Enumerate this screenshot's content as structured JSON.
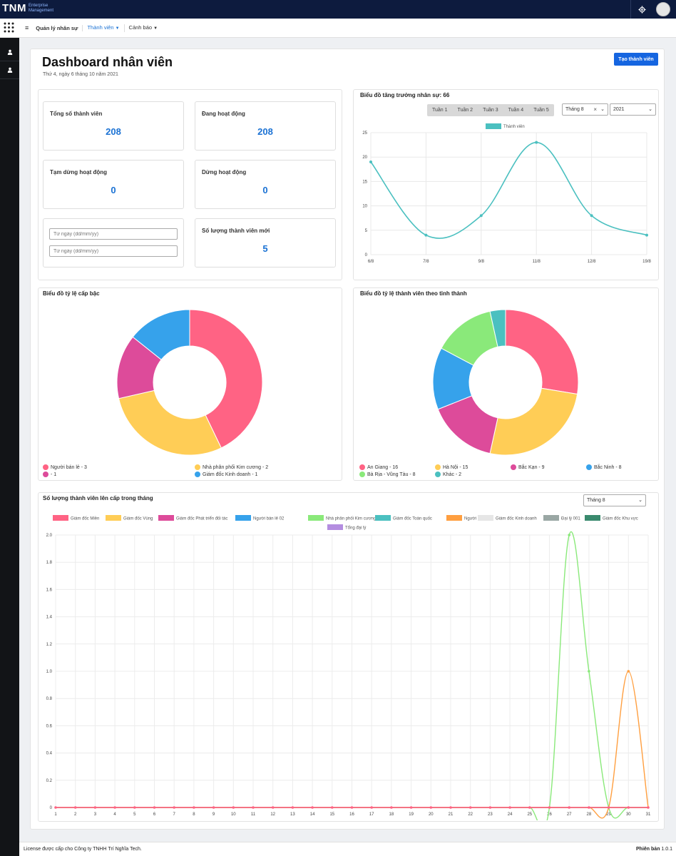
{
  "brand": {
    "name": "TNM",
    "sub_line1": "Enterprise",
    "sub_line2": "Management"
  },
  "icons": {
    "apps": "grid-icon",
    "menu": "hamburger-icon",
    "settings": "gear-icon",
    "user": "user-icon"
  },
  "nav": {
    "items": [
      {
        "label": "Quản lý nhân sự",
        "active": false,
        "dropdown": false
      },
      {
        "label": "Thành viên",
        "active": true,
        "dropdown": true
      },
      {
        "label": "Cảnh báo",
        "active": false,
        "dropdown": true
      }
    ]
  },
  "page": {
    "title": "Dashboard nhân viên",
    "date": "Thứ 4, ngày 6 tháng 10 năm 2021",
    "create_button": "Tạo thành viên"
  },
  "stats": {
    "total": {
      "label": "Tổng số thành viên",
      "value": "208"
    },
    "active": {
      "label": "Đang hoạt động",
      "value": "208"
    },
    "paused": {
      "label": "Tạm dừng hoạt động",
      "value": "0"
    },
    "stopped": {
      "label": "Dừng hoạt động",
      "value": "0"
    },
    "new_members": {
      "label": "Số lượng thành viên mới",
      "value": "5"
    },
    "date_from_placeholder": "Từ ngày (dd/mm/yy)",
    "date_to_placeholder": "Từ ngày (dd/mm/yy)"
  },
  "colors": {
    "brand_dark": "#0d1b3e",
    "primary": "#1565e0",
    "value_blue": "#1b72d4"
  },
  "chart_data": [
    {
      "type": "line",
      "title": "Biểu đồ tăng trưởng nhân sự: 66",
      "week_tabs": [
        "Tuần 1",
        "Tuần 2",
        "Tuần 3",
        "Tuần 4",
        "Tuần 5"
      ],
      "month_select": "Tháng 8",
      "month_clear": "×",
      "year_select": "2021",
      "categories": [
        "6/8",
        "7/8",
        "9/8",
        "11/8",
        "12/8",
        "19/8"
      ],
      "series": [
        {
          "name": "Thành viên",
          "color": "#4bc0c0",
          "values": [
            19,
            4,
            8,
            23,
            8,
            4
          ]
        }
      ],
      "y_ticks": [
        "0",
        "5",
        "10",
        "15",
        "20",
        "25"
      ],
      "ylim": [
        0,
        25
      ],
      "grid": true,
      "legend": "top"
    },
    {
      "type": "pie",
      "title": "Biểu đồ tỷ lệ cấp bậc",
      "donut": true,
      "slices": [
        {
          "label": "Người bán lẻ - 3",
          "value": 3,
          "color": "#ff6384"
        },
        {
          "label": "Nhà phân phối Kim cương - 2",
          "value": 2,
          "color": "#ffcd56"
        },
        {
          "label": " - 1",
          "value": 1,
          "color": "#dd4b9a"
        },
        {
          "label": "Giám đốc Kinh doanh - 1",
          "value": 1,
          "color": "#36a2eb"
        }
      ],
      "legend": "bottom"
    },
    {
      "type": "pie",
      "title": "Biểu đồ tỷ lệ thành viên theo tỉnh thành",
      "donut": true,
      "slices": [
        {
          "label": "An Giang - 16",
          "value": 16,
          "color": "#ff6384"
        },
        {
          "label": "Hà Nội - 15",
          "value": 15,
          "color": "#ffcd56"
        },
        {
          "label": "Bắc Kạn - 9",
          "value": 9,
          "color": "#dd4b9a"
        },
        {
          "label": "Bắc Ninh - 8",
          "value": 8,
          "color": "#36a2eb"
        },
        {
          "label": "Bà Rịa - Vũng Tàu - 8",
          "value": 8,
          "color": "#8ae97a"
        },
        {
          "label": "Khác - 2",
          "value": 2,
          "color": "#4bc0c0"
        }
      ],
      "legend": "bottom"
    },
    {
      "type": "line",
      "title": "Số lượng thành viên lên cấp trong tháng",
      "month_select": "Tháng 8",
      "x": [
        1,
        2,
        3,
        4,
        5,
        6,
        7,
        8,
        9,
        10,
        11,
        12,
        13,
        14,
        15,
        16,
        17,
        18,
        19,
        20,
        21,
        22,
        23,
        24,
        25,
        26,
        27,
        28,
        29,
        30,
        31
      ],
      "x_ticks": [
        "1",
        "2",
        "3",
        "4",
        "5",
        "6",
        "7",
        "8",
        "9",
        "10",
        "11",
        "12",
        "13",
        "14",
        "15",
        "16",
        "17",
        "18",
        "19",
        "20",
        "21",
        "22",
        "23",
        "24",
        "25",
        "26",
        "27",
        "28",
        "29",
        "30",
        "31"
      ],
      "y_ticks": [
        "0",
        "0.2",
        "0.4",
        "0.6",
        "0.8",
        "1.0",
        "1.2",
        "1.4",
        "1.6",
        "1.8",
        "2.0"
      ],
      "ylim": [
        0,
        2
      ],
      "grid": true,
      "legend": "top",
      "series": [
        {
          "name": "Giám đốc Miền",
          "color": "#ff6384",
          "values": [
            0,
            0,
            0,
            0,
            0,
            0,
            0,
            0,
            0,
            0,
            0,
            0,
            0,
            0,
            0,
            0,
            0,
            0,
            0,
            0,
            0,
            0,
            0,
            0,
            0,
            0,
            0,
            0,
            0,
            0,
            0
          ]
        },
        {
          "name": "Giám đốc Vùng",
          "color": "#ffcd56",
          "values": [
            0,
            0,
            0,
            0,
            0,
            0,
            0,
            0,
            0,
            0,
            0,
            0,
            0,
            0,
            0,
            0,
            0,
            0,
            0,
            0,
            0,
            0,
            0,
            0,
            0,
            0,
            0,
            0,
            0,
            0,
            0
          ]
        },
        {
          "name": "Giám đốc Phát triển đối tác",
          "color": "#dd4b9a",
          "values": [
            0,
            0,
            0,
            0,
            0,
            0,
            0,
            0,
            0,
            0,
            0,
            0,
            0,
            0,
            0,
            0,
            0,
            0,
            0,
            0,
            0,
            0,
            0,
            0,
            0,
            0,
            0,
            0,
            0,
            0,
            0
          ]
        },
        {
          "name": "Người bán lẻ 02",
          "color": "#36a2eb",
          "values": [
            0,
            0,
            0,
            0,
            0,
            0,
            0,
            0,
            0,
            0,
            0,
            0,
            0,
            0,
            0,
            0,
            0,
            0,
            0,
            0,
            0,
            0,
            0,
            0,
            0,
            0,
            0,
            0,
            0,
            0,
            0
          ]
        },
        {
          "name": "Nhà phân phối Kim cương",
          "color": "#8ae97a",
          "values": [
            0,
            0,
            0,
            0,
            0,
            0,
            0,
            0,
            0,
            0,
            0,
            0,
            0,
            0,
            0,
            0,
            0,
            0,
            0,
            0,
            0,
            0,
            0,
            0,
            0,
            0,
            2,
            1,
            0,
            0,
            0
          ]
        },
        {
          "name": "Giám đốc Toàn quốc",
          "color": "#4bc0c0",
          "values": [
            0,
            0,
            0,
            0,
            0,
            0,
            0,
            0,
            0,
            0,
            0,
            0,
            0,
            0,
            0,
            0,
            0,
            0,
            0,
            0,
            0,
            0,
            0,
            0,
            0,
            0,
            0,
            0,
            0,
            0,
            0
          ]
        },
        {
          "name": "Người bán lẻ",
          "color": "#ff9f40",
          "values": [
            0,
            0,
            0,
            0,
            0,
            0,
            0,
            0,
            0,
            0,
            0,
            0,
            0,
            0,
            0,
            0,
            0,
            0,
            0,
            0,
            0,
            0,
            0,
            0,
            0,
            0,
            0,
            0,
            0,
            1,
            0
          ]
        },
        {
          "name": "Giám đốc Kinh doanh",
          "color": "#e6e6e6",
          "values": [
            0,
            0,
            0,
            0,
            0,
            0,
            0,
            0,
            0,
            0,
            0,
            0,
            0,
            0,
            0,
            0,
            0,
            0,
            0,
            0,
            0,
            0,
            0,
            0,
            0,
            0,
            0,
            0,
            0,
            0,
            0
          ]
        },
        {
          "name": "Đại lý 001",
          "color": "#9aa7a4",
          "values": [
            0,
            0,
            0,
            0,
            0,
            0,
            0,
            0,
            0,
            0,
            0,
            0,
            0,
            0,
            0,
            0,
            0,
            0,
            0,
            0,
            0,
            0,
            0,
            0,
            0,
            0,
            0,
            0,
            0,
            0,
            0
          ]
        },
        {
          "name": "Giám đốc Khu vực",
          "color": "#3a8a6e",
          "values": [
            0,
            0,
            0,
            0,
            0,
            0,
            0,
            0,
            0,
            0,
            0,
            0,
            0,
            0,
            0,
            0,
            0,
            0,
            0,
            0,
            0,
            0,
            0,
            0,
            0,
            0,
            0,
            0,
            0,
            0,
            0
          ]
        },
        {
          "name": "Tổng đại lý",
          "color": "#b48de0",
          "values": [
            0,
            0,
            0,
            0,
            0,
            0,
            0,
            0,
            0,
            0,
            0,
            0,
            0,
            0,
            0,
            0,
            0,
            0,
            0,
            0,
            0,
            0,
            0,
            0,
            0,
            0,
            0,
            0,
            0,
            0,
            0
          ]
        }
      ]
    }
  ],
  "footer": {
    "license": "License được cấp cho Công ty TNHH Trí Nghĩa Tech.",
    "version_label": "Phiên bản",
    "version": "1.0.1"
  }
}
